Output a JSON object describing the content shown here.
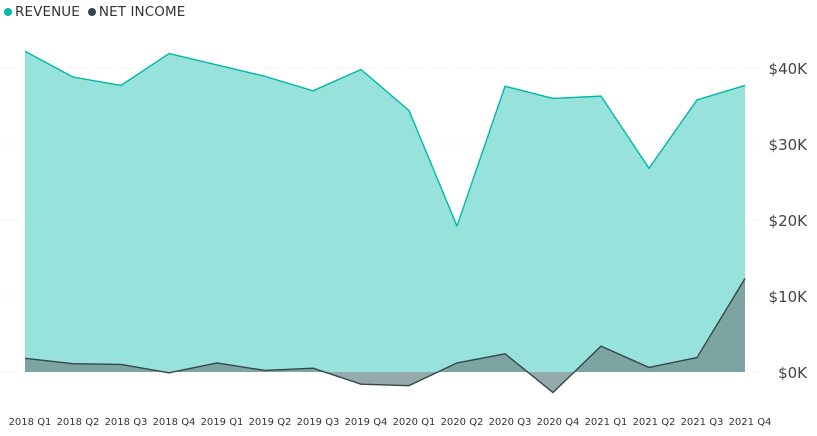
{
  "chart_data": {
    "type": "area",
    "categories": [
      "2018 Q1",
      "2018 Q2",
      "2018 Q3",
      "2018 Q4",
      "2019 Q1",
      "2019 Q2",
      "2019 Q3",
      "2019 Q4",
      "2020 Q1",
      "2020 Q2",
      "2020 Q3",
      "2020 Q4",
      "2021 Q1",
      "2021 Q2",
      "2021 Q3",
      "2021 Q4"
    ],
    "series": [
      {
        "name": "REVENUE",
        "color": "#01B8AA",
        "fill": "#97E3DC",
        "values": [
          42200,
          38800,
          37700,
          41900,
          40400,
          38900,
          37000,
          39800,
          34400,
          19200,
          37600,
          36000,
          36300,
          26800,
          35800,
          37700
        ]
      },
      {
        "name": "NET INCOME",
        "color": "#374649",
        "fill": "#728F8F",
        "values": [
          1800,
          1100,
          1000,
          -100,
          1200,
          200,
          500,
          -1600,
          -1800,
          1200,
          2400,
          -2700,
          3400,
          600,
          1900,
          12300
        ]
      }
    ],
    "ylim": [
      -3500,
      45000
    ],
    "yticks": [
      0,
      10000,
      20000,
      30000,
      40000
    ],
    "ytick_labels": [
      "$0K",
      "$10K",
      "$20K",
      "$30K",
      "$40K"
    ],
    "grid": true,
    "legend_position": "top-left"
  }
}
